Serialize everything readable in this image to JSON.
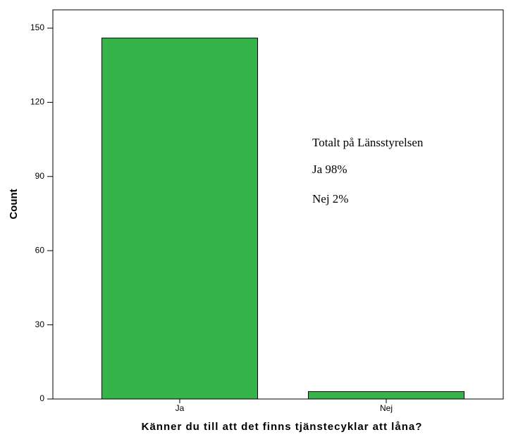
{
  "chart_data": {
    "type": "bar",
    "categories": [
      "Ja",
      "Nej"
    ],
    "values": [
      146,
      3
    ],
    "color": "#34b449",
    "xlabel": "Känner du till att det finns tjänstecyklar att låna?",
    "ylabel": "Count",
    "ylim": [
      0,
      157.4
    ],
    "yticks": [
      0,
      30,
      60,
      90,
      120,
      150
    ],
    "annotations": [
      "Totalt på Länsstyrelsen",
      "Ja 98%",
      "Nej 2%"
    ]
  }
}
